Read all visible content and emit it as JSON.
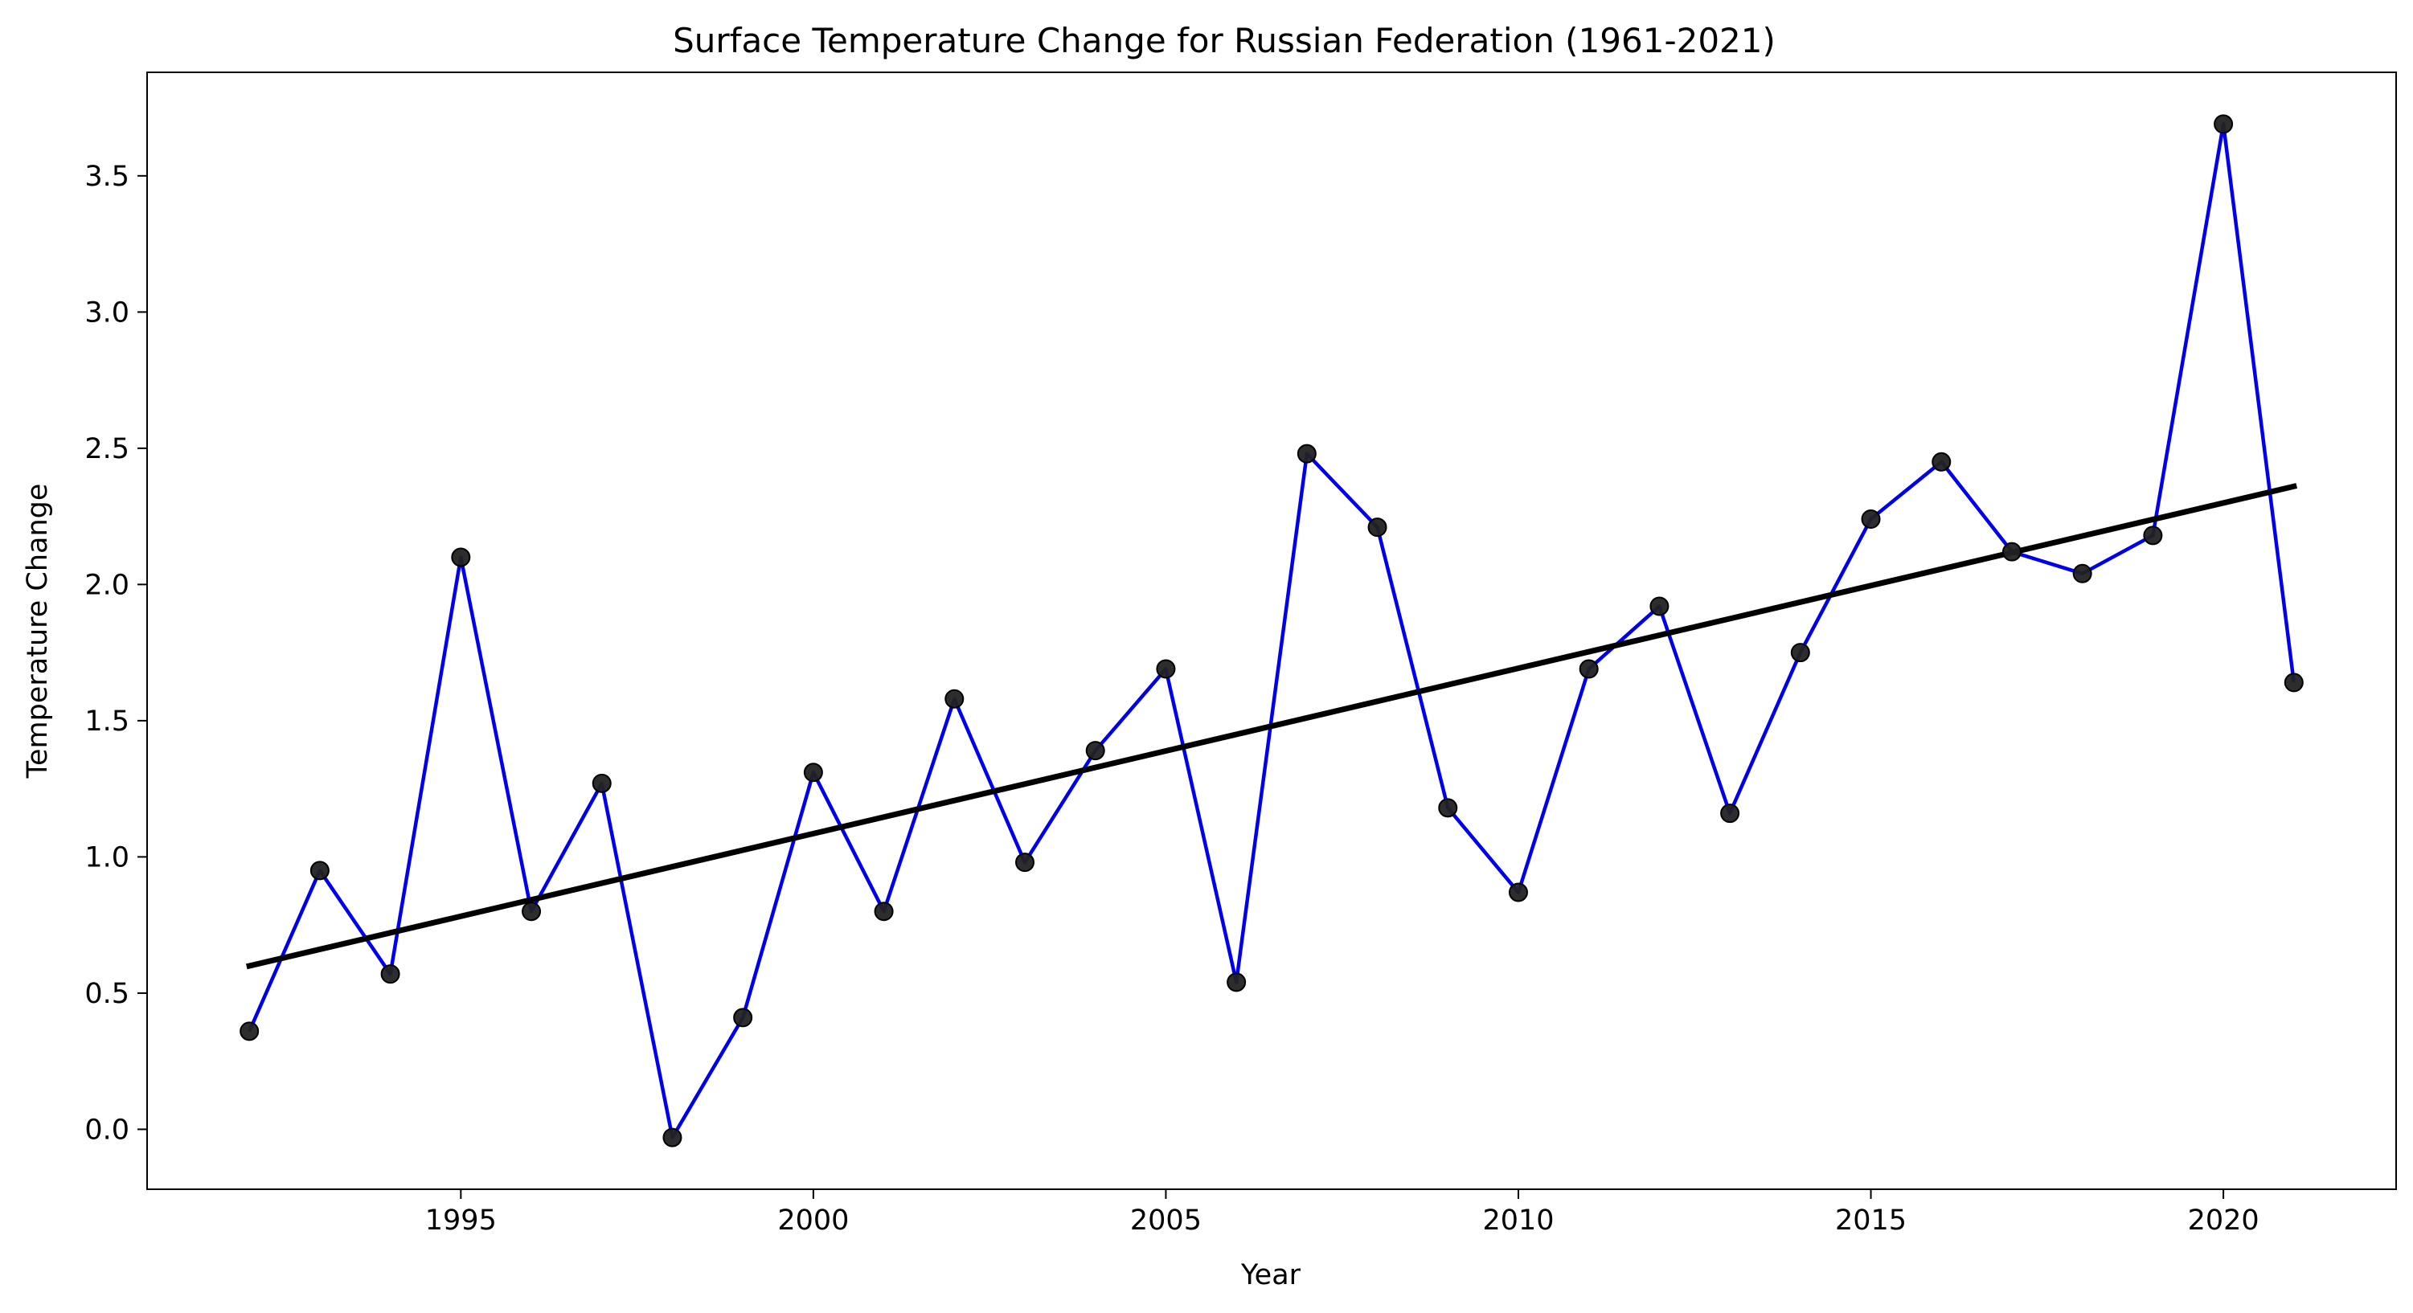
{
  "chart_data": {
    "type": "line",
    "title": "Surface Temperature Change for Russian Federation (1961-2021)",
    "xlabel": "Year",
    "ylabel": "Temperature Change",
    "xlim": [
      1990.55,
      2022.45
    ],
    "ylim": [
      -0.22,
      3.88
    ],
    "x_ticks": [
      1995,
      2000,
      2005,
      2010,
      2015,
      2020
    ],
    "x_tick_labels": [
      "1995",
      "2000",
      "2005",
      "2010",
      "2015",
      "2020"
    ],
    "y_ticks": [
      0.0,
      0.5,
      1.0,
      1.5,
      2.0,
      2.5,
      3.0,
      3.5
    ],
    "y_tick_labels": [
      "0.0",
      "0.5",
      "1.0",
      "1.5",
      "2.0",
      "2.5",
      "3.0",
      "3.5"
    ],
    "grid": false,
    "series": [
      {
        "kind": "line-with-markers",
        "x": [
          1992,
          1993,
          1994,
          1995,
          1996,
          1997,
          1998,
          1999,
          2000,
          2001,
          2002,
          2003,
          2004,
          2005,
          2006,
          2007,
          2008,
          2009,
          2010,
          2011,
          2012,
          2013,
          2014,
          2015,
          2016,
          2017,
          2018,
          2019,
          2020,
          2021
        ],
        "values": [
          0.36,
          0.95,
          0.57,
          2.1,
          0.8,
          1.27,
          -0.03,
          0.41,
          1.31,
          0.8,
          1.58,
          0.98,
          1.39,
          1.69,
          0.54,
          2.48,
          2.21,
          1.18,
          0.87,
          1.69,
          1.92,
          1.16,
          1.75,
          2.24,
          2.45,
          2.12,
          2.04,
          2.18,
          3.69,
          1.64
        ],
        "line_color": "#0000ee",
        "marker_color": "#222222"
      },
      {
        "kind": "trend-line",
        "x": [
          1992,
          2021
        ],
        "values": [
          0.6,
          2.36
        ],
        "line_color": "#000000"
      }
    ]
  }
}
